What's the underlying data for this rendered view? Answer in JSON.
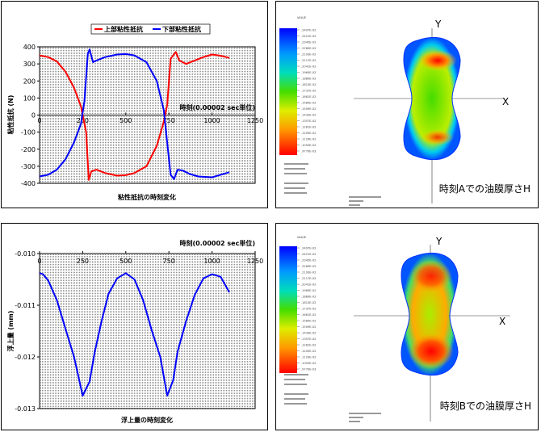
{
  "chart_data": [
    {
      "type": "line",
      "xlabel": "時刻(0.00002 sec単位)",
      "ylabel": "粘性抵抗 (N)",
      "caption": "粘性抵抗の時刻変化",
      "xlim": [
        0,
        1250
      ],
      "ylim": [
        -400,
        400
      ],
      "xticks": [
        0,
        250,
        500,
        750,
        1000,
        1250
      ],
      "yticks": [
        400,
        300,
        200,
        100,
        0,
        -100,
        -200,
        -300,
        -400
      ],
      "grid": false,
      "legend_position": "top-center",
      "series": [
        {
          "name": "上部粘性抵抗",
          "color": "#ff0000",
          "x": [
            0,
            50,
            100,
            150,
            200,
            240,
            270,
            285,
            300,
            330,
            380,
            450,
            500,
            550,
            620,
            680,
            720,
            740,
            760,
            790,
            810,
            850,
            900,
            950,
            1000,
            1050,
            1100
          ],
          "y": [
            350,
            340,
            315,
            255,
            160,
            50,
            -100,
            -380,
            -330,
            -320,
            -340,
            -355,
            -352,
            -340,
            -300,
            -180,
            -40,
            60,
            330,
            370,
            320,
            300,
            320,
            340,
            355,
            348,
            335
          ]
        },
        {
          "name": "下部粘性抵抗",
          "color": "#0000ff",
          "x": [
            0,
            50,
            100,
            150,
            200,
            240,
            260,
            280,
            290,
            310,
            330,
            380,
            450,
            500,
            550,
            620,
            680,
            720,
            760,
            780,
            800,
            830,
            870,
            920,
            1000,
            1050,
            1100
          ],
          "y": [
            -360,
            -350,
            -320,
            -260,
            -160,
            -50,
            80,
            360,
            385,
            310,
            320,
            340,
            355,
            358,
            350,
            310,
            200,
            30,
            -350,
            -375,
            -320,
            -325,
            -345,
            -360,
            -365,
            -350,
            -335
          ]
        }
      ]
    },
    {
      "type": "line",
      "xlabel": "時刻(0.00002 sec単位)",
      "ylabel": "浮上量 (mm)",
      "caption": "浮上量の時刻変化",
      "xlim": [
        0,
        1250
      ],
      "ylim": [
        -0.013,
        -0.01
      ],
      "xticks": [
        0,
        250,
        500,
        750,
        1000,
        1250
      ],
      "yticks": [
        "-0.010",
        "-0.011",
        "-0.012",
        "-0.013"
      ],
      "ytick_values": [
        -0.01,
        -0.011,
        -0.012,
        -0.013
      ],
      "grid": false,
      "series": [
        {
          "name": "",
          "color": "#0000ff",
          "x": [
            0,
            20,
            50,
            100,
            150,
            200,
            250,
            290,
            320,
            360,
            400,
            450,
            500,
            550,
            600,
            650,
            700,
            740,
            775,
            800,
            850,
            900,
            950,
            1000,
            1050,
            1100
          ],
          "y": [
            -0.01038,
            -0.0104,
            -0.01052,
            -0.0109,
            -0.01145,
            -0.012,
            -0.01275,
            -0.01248,
            -0.0119,
            -0.0113,
            -0.01078,
            -0.01048,
            -0.01038,
            -0.0105,
            -0.0109,
            -0.01148,
            -0.012,
            -0.01275,
            -0.01245,
            -0.0119,
            -0.0113,
            -0.0108,
            -0.01048,
            -0.0104,
            -0.01045,
            -0.01075
          ]
        }
      ]
    }
  ],
  "contour_panels": [
    {
      "axis_y": "Y",
      "axis_x": "X",
      "caption": "時刻Aでの油膜厚さH",
      "scale_title": "VALUE",
      "scale_values": [
        ".2497E-02",
        ".2421E-02",
        ".2345E-02",
        ".2269E-02",
        ".2193E-02",
        ".2117E-02",
        ".2041E-02",
        ".1965E-02",
        ".1889E-02",
        ".1813E-02",
        ".1737E-02",
        ".1661E-02",
        ".1585E-02",
        ".1509E-02",
        ".1433E-02",
        ".1357E-02",
        ".1281E-02",
        ".1205E-02",
        ".1129E-02",
        ".1053E-02",
        ".9770E-03"
      ]
    },
    {
      "axis_y": "Y",
      "axis_x": "X",
      "caption": "時刻Bでの油膜厚さH",
      "scale_title": "VALUE",
      "scale_values": [
        ".2497E-02",
        ".2421E-02",
        ".2345E-02",
        ".2269E-02",
        ".2193E-02",
        ".2117E-02",
        ".2041E-02",
        ".1965E-02",
        ".1889E-02",
        ".1813E-02",
        ".1737E-02",
        ".1661E-02",
        ".1585E-02",
        ".1509E-02",
        ".1433E-02",
        ".1357E-02",
        ".1281E-02",
        ".1205E-02",
        ".1129E-02",
        ".1053E-02",
        ".9770E-03"
      ]
    }
  ]
}
